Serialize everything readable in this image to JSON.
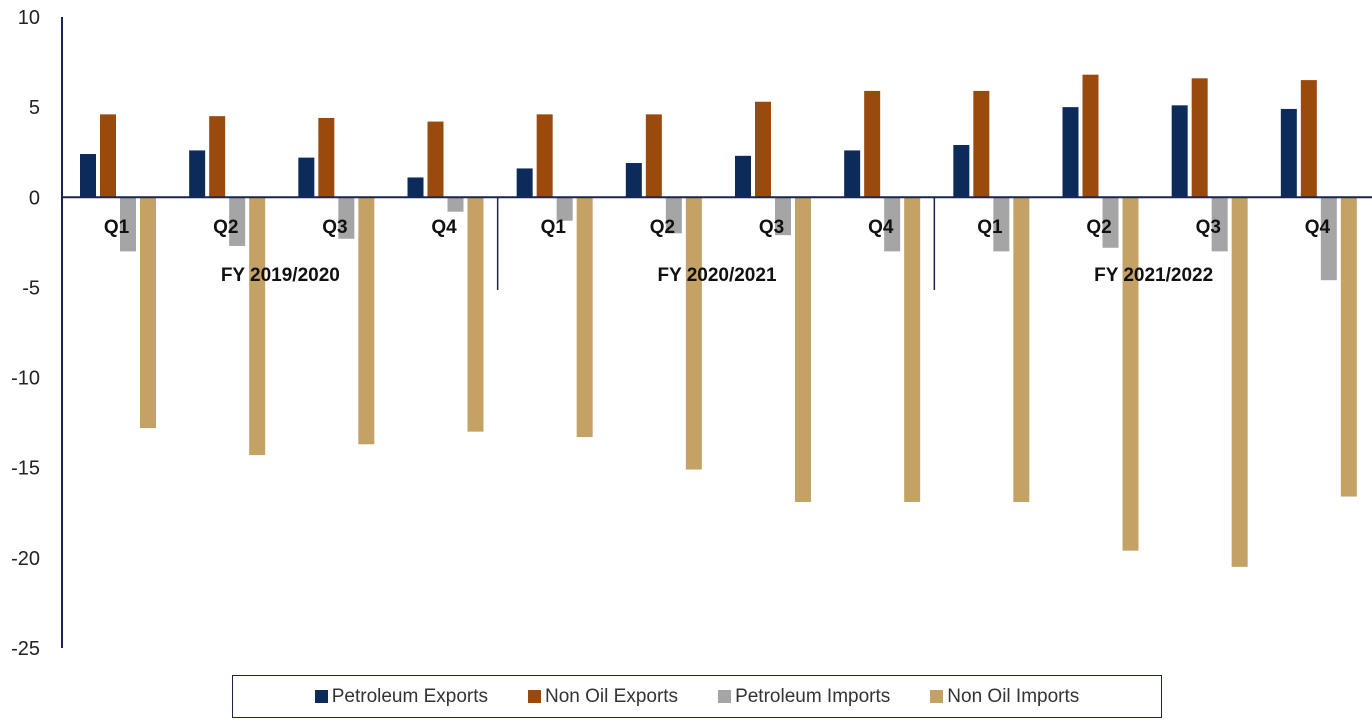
{
  "chart_data": {
    "type": "bar",
    "title": "",
    "xlabel": "",
    "ylabel": "",
    "ylim": [
      -25,
      10
    ],
    "yticks": [
      10,
      5,
      0,
      -5,
      -10,
      -15,
      -20,
      -25
    ],
    "grid": false,
    "legend_position": "bottom",
    "groups": [
      {
        "label": "FY 2019/2020",
        "quarters": [
          "Q1",
          "Q2",
          "Q3",
          "Q4"
        ]
      },
      {
        "label": "FY 2020/2021",
        "quarters": [
          "Q1",
          "Q2",
          "Q3",
          "Q4"
        ]
      },
      {
        "label": "FY 2021/2022",
        "quarters": [
          "Q1",
          "Q2",
          "Q3",
          "Q4"
        ]
      }
    ],
    "series": [
      {
        "name": "Petroleum Exports",
        "color": "#0d2b5a",
        "values": [
          2.4,
          2.6,
          2.2,
          1.1,
          1.6,
          1.9,
          2.3,
          2.6,
          2.9,
          5.0,
          5.1,
          4.9
        ]
      },
      {
        "name": "Non Oil Exports",
        "color": "#9a4a0c",
        "values": [
          4.6,
          4.5,
          4.4,
          4.2,
          4.6,
          4.6,
          5.3,
          5.9,
          5.9,
          6.8,
          6.6,
          6.5
        ]
      },
      {
        "name": "Petroleum Imports",
        "color": "#a5a5a5",
        "values": [
          -3.0,
          -2.7,
          -2.3,
          -0.8,
          -1.3,
          -2.0,
          -2.1,
          -3.0,
          -3.0,
          -2.8,
          -3.0,
          -4.6
        ]
      },
      {
        "name": "Non Oil Imports",
        "color": "#c4a265",
        "values": [
          -12.8,
          -14.3,
          -13.7,
          -13.0,
          -13.3,
          -15.1,
          -16.9,
          -16.9,
          -16.9,
          -19.6,
          -20.5,
          -16.6
        ]
      }
    ]
  },
  "colors": {
    "axis": "#1b2450"
  }
}
